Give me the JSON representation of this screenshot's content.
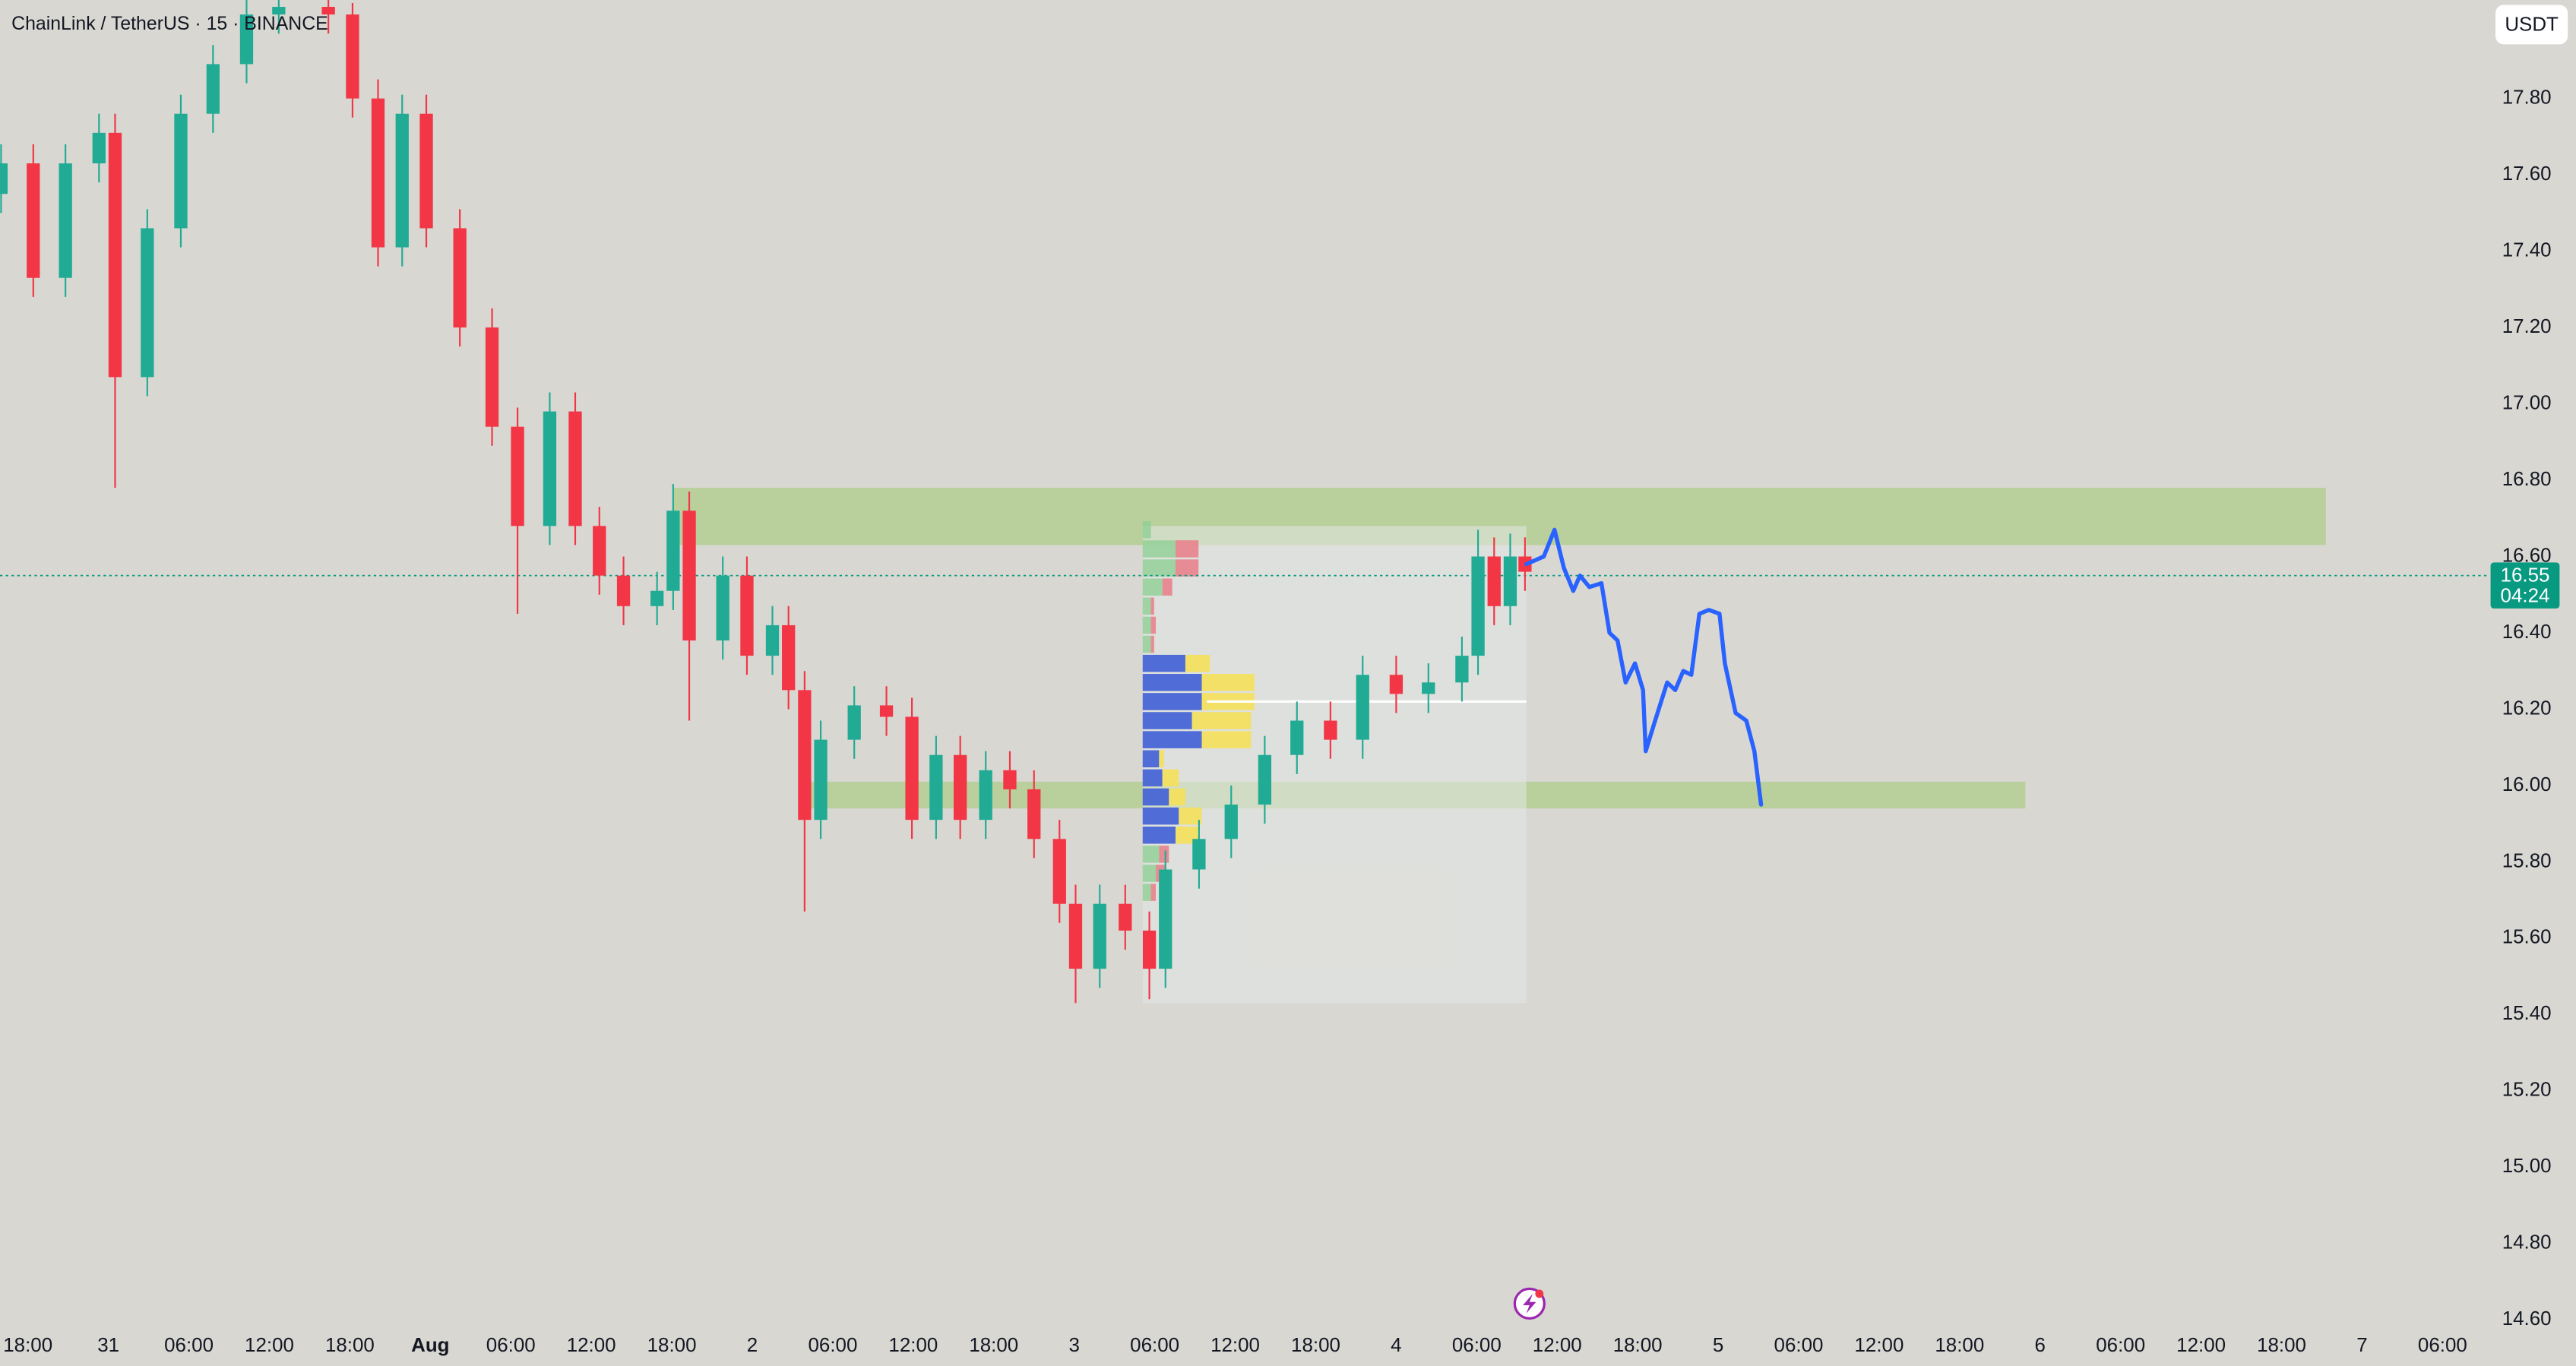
{
  "chart_data": {
    "type": "candlestick",
    "title": "ChainLink / TetherUS · 15 · BINANCE",
    "currency_button": "USDT",
    "up_color": "#22ab94",
    "down_color": "#f23645",
    "x": [
      -8,
      -5.6,
      -3.2,
      -0.7,
      0.5,
      2.9,
      5.4,
      7.8,
      10.3,
      12.7,
      16.4,
      18.2,
      20.1,
      21.9,
      23.7,
      26.2,
      28.6,
      30.5,
      32.9,
      34.8,
      36.6,
      38.4,
      40.9,
      42.1,
      43.3,
      45.8,
      47.6,
      49.5,
      50.7,
      51.9,
      53.1,
      55.6,
      58.0,
      59.9,
      61.7,
      63.5,
      65.4,
      67.2,
      69.0,
      70.9,
      72.1,
      73.9,
      75.8,
      77.6,
      78.8,
      81.3,
      83.7,
      86.2,
      88.6,
      91.1,
      93.5,
      96.0,
      98.4,
      100.9,
      102.1,
      103.3,
      104.5,
      105.6
    ],
    "open": [
      17.55,
      17.63,
      17.33,
      17.63,
      17.71,
      17.07,
      17.46,
      17.76,
      17.89,
      18.02,
      18.04,
      18.02,
      17.8,
      17.41,
      17.76,
      17.46,
      17.2,
      16.94,
      16.68,
      16.98,
      16.68,
      16.55,
      16.47,
      16.51,
      16.72,
      16.38,
      16.55,
      16.34,
      16.42,
      16.25,
      15.91,
      16.12,
      16.21,
      16.18,
      15.91,
      16.08,
      15.91,
      16.04,
      15.99,
      15.86,
      15.69,
      15.52,
      15.69,
      15.62,
      15.52,
      15.78,
      15.86,
      15.95,
      16.08,
      16.17,
      16.12,
      16.29,
      16.24,
      16.27,
      16.34,
      16.6,
      16.47,
      16.6
    ],
    "high": [
      17.68,
      17.68,
      17.68,
      17.76,
      17.76,
      17.51,
      17.81,
      17.94,
      18.06,
      18.06,
      18.06,
      18.05,
      17.85,
      17.81,
      17.81,
      17.51,
      17.25,
      16.99,
      17.03,
      17.03,
      16.73,
      16.6,
      16.56,
      16.79,
      16.77,
      16.6,
      16.6,
      16.47,
      16.47,
      16.3,
      16.17,
      16.26,
      16.26,
      16.23,
      16.13,
      16.13,
      16.09,
      16.09,
      16.04,
      15.91,
      15.74,
      15.74,
      15.74,
      15.67,
      15.83,
      15.91,
      16.0,
      16.13,
      16.22,
      16.22,
      16.34,
      16.34,
      16.32,
      16.39,
      16.67,
      16.65,
      16.66,
      16.65
    ],
    "low": [
      17.5,
      17.28,
      17.28,
      17.58,
      16.78,
      17.02,
      17.41,
      17.71,
      17.84,
      17.97,
      17.97,
      17.75,
      17.36,
      17.36,
      17.41,
      17.15,
      16.89,
      16.45,
      16.63,
      16.63,
      16.5,
      16.42,
      16.42,
      16.46,
      16.17,
      16.33,
      16.29,
      16.29,
      16.2,
      15.67,
      15.86,
      16.07,
      16.13,
      15.86,
      15.86,
      15.86,
      15.86,
      15.94,
      15.81,
      15.64,
      15.43,
      15.47,
      15.57,
      15.44,
      15.47,
      15.73,
      15.81,
      15.9,
      16.03,
      16.07,
      16.07,
      16.19,
      16.19,
      16.22,
      16.29,
      16.42,
      16.42,
      16.51
    ],
    "close": [
      17.63,
      17.33,
      17.63,
      17.71,
      17.07,
      17.46,
      17.76,
      17.89,
      18.02,
      18.04,
      18.02,
      17.8,
      17.41,
      17.76,
      17.46,
      17.2,
      16.94,
      16.68,
      16.98,
      16.68,
      16.55,
      16.47,
      16.51,
      16.72,
      16.38,
      16.55,
      16.34,
      16.42,
      16.25,
      15.91,
      16.12,
      16.21,
      16.18,
      15.91,
      16.08,
      15.91,
      16.04,
      15.99,
      15.86,
      15.69,
      15.52,
      15.69,
      15.62,
      15.52,
      15.78,
      15.86,
      15.95,
      16.08,
      16.17,
      16.12,
      16.29,
      16.24,
      16.27,
      16.34,
      16.6,
      16.47,
      16.6,
      16.56
    ],
    "xlim": [
      -8.08,
      176.6
    ],
    "ylim": [
      14.591,
      18.058
    ],
    "xticks": [
      {
        "value": -6,
        "label": "18:00"
      },
      {
        "value": 0,
        "label": "31"
      },
      {
        "value": 6,
        "label": "06:00"
      },
      {
        "value": 12,
        "label": "12:00"
      },
      {
        "value": 18,
        "label": "18:00"
      },
      {
        "value": 24,
        "label": "Aug"
      },
      {
        "value": 30,
        "label": "06:00"
      },
      {
        "value": 36,
        "label": "12:00"
      },
      {
        "value": 42,
        "label": "18:00"
      },
      {
        "value": 48,
        "label": "2"
      },
      {
        "value": 54,
        "label": "06:00"
      },
      {
        "value": 60,
        "label": "12:00"
      },
      {
        "value": 66,
        "label": "18:00"
      },
      {
        "value": 72,
        "label": "3"
      },
      {
        "value": 78,
        "label": "06:00"
      },
      {
        "value": 84,
        "label": "12:00"
      },
      {
        "value": 90,
        "label": "18:00"
      },
      {
        "value": 96,
        "label": "4"
      },
      {
        "value": 102,
        "label": "06:00"
      },
      {
        "value": 108,
        "label": "12:00"
      },
      {
        "value": 114,
        "label": "18:00"
      },
      {
        "value": 120,
        "label": "5"
      },
      {
        "value": 126,
        "label": "06:00"
      },
      {
        "value": 132,
        "label": "12:00"
      },
      {
        "value": 138,
        "label": "18:00"
      },
      {
        "value": 144,
        "label": "6"
      },
      {
        "value": 150,
        "label": "06:00"
      },
      {
        "value": 156,
        "label": "12:00"
      },
      {
        "value": 162,
        "label": "18:00"
      },
      {
        "value": 168,
        "label": "7"
      },
      {
        "value": 174,
        "label": "06:00"
      }
    ],
    "yticks": [
      {
        "value": 14.6,
        "label": "14.60"
      },
      {
        "value": 14.8,
        "label": "14.80"
      },
      {
        "value": 15.0,
        "label": "15.00"
      },
      {
        "value": 15.2,
        "label": "15.20"
      },
      {
        "value": 15.4,
        "label": "15.40"
      },
      {
        "value": 15.6,
        "label": "15.60"
      },
      {
        "value": 15.8,
        "label": "15.80"
      },
      {
        "value": 16.0,
        "label": "16.00"
      },
      {
        "value": 16.2,
        "label": "16.20"
      },
      {
        "value": 16.4,
        "label": "16.40"
      },
      {
        "value": 16.6,
        "label": "16.60"
      },
      {
        "value": 16.8,
        "label": "16.80"
      },
      {
        "value": 17.0,
        "label": "17.00"
      },
      {
        "value": 17.2,
        "label": "17.20"
      },
      {
        "value": 17.4,
        "label": "17.40"
      },
      {
        "value": 17.6,
        "label": "17.60"
      },
      {
        "value": 17.8,
        "label": "17.80"
      }
    ],
    "zones": [
      {
        "x": [
          42.1,
          165.3
        ],
        "y": [
          16.63,
          16.78
        ]
      },
      {
        "x": [
          52.3,
          142.9
        ],
        "y": [
          15.94,
          16.01
        ]
      }
    ],
    "zone_color": "#8bc34a",
    "profile_box": {
      "x": [
        77.1,
        105.7
      ],
      "y": [
        15.43,
        16.68
      ]
    },
    "poc": {
      "x": [
        81.9,
        105.7
      ],
      "y": 16.22
    },
    "volume_profile": {
      "prices": [
        16.67,
        16.62,
        16.57,
        16.52,
        16.47,
        16.42,
        16.37,
        16.32,
        16.27,
        16.22,
        16.17,
        16.12,
        16.07,
        16.02,
        15.97,
        15.92,
        15.87,
        15.82,
        15.77,
        15.72
      ],
      "up": [
        5,
        20,
        20,
        12,
        5,
        5,
        5,
        26,
        36,
        36,
        30,
        36,
        10,
        12,
        16,
        22,
        20,
        10,
        8,
        5
      ],
      "down": [
        0,
        14,
        14,
        6,
        2,
        3,
        2,
        15,
        32,
        32,
        36,
        30,
        3,
        10,
        10,
        14,
        14,
        6,
        6,
        3
      ],
      "row_height": 0.05,
      "value_area": [
        15.85,
        16.35
      ]
    },
    "forecast": {
      "color": "#2962ff",
      "x": [
        105.7,
        107.0,
        107.8,
        108.5,
        109.2,
        109.7,
        110.4,
        111.3,
        111.9,
        112.5,
        113.1,
        113.8,
        114.4,
        114.6,
        115.3,
        116.2,
        116.8,
        117.4,
        118.0,
        118.6,
        119.3,
        120.1,
        120.5,
        121.3,
        122.1,
        122.7,
        123.2
      ],
      "y": [
        16.58,
        16.6,
        16.67,
        16.57,
        16.51,
        16.55,
        16.52,
        16.53,
        16.4,
        16.38,
        16.27,
        16.32,
        16.25,
        16.09,
        16.17,
        16.27,
        16.25,
        16.3,
        16.29,
        16.45,
        16.46,
        16.45,
        16.32,
        16.19,
        16.17,
        16.09,
        15.95
      ]
    },
    "last_price": {
      "value": 16.55,
      "label": "16.55",
      "countdown": "04:24"
    }
  }
}
